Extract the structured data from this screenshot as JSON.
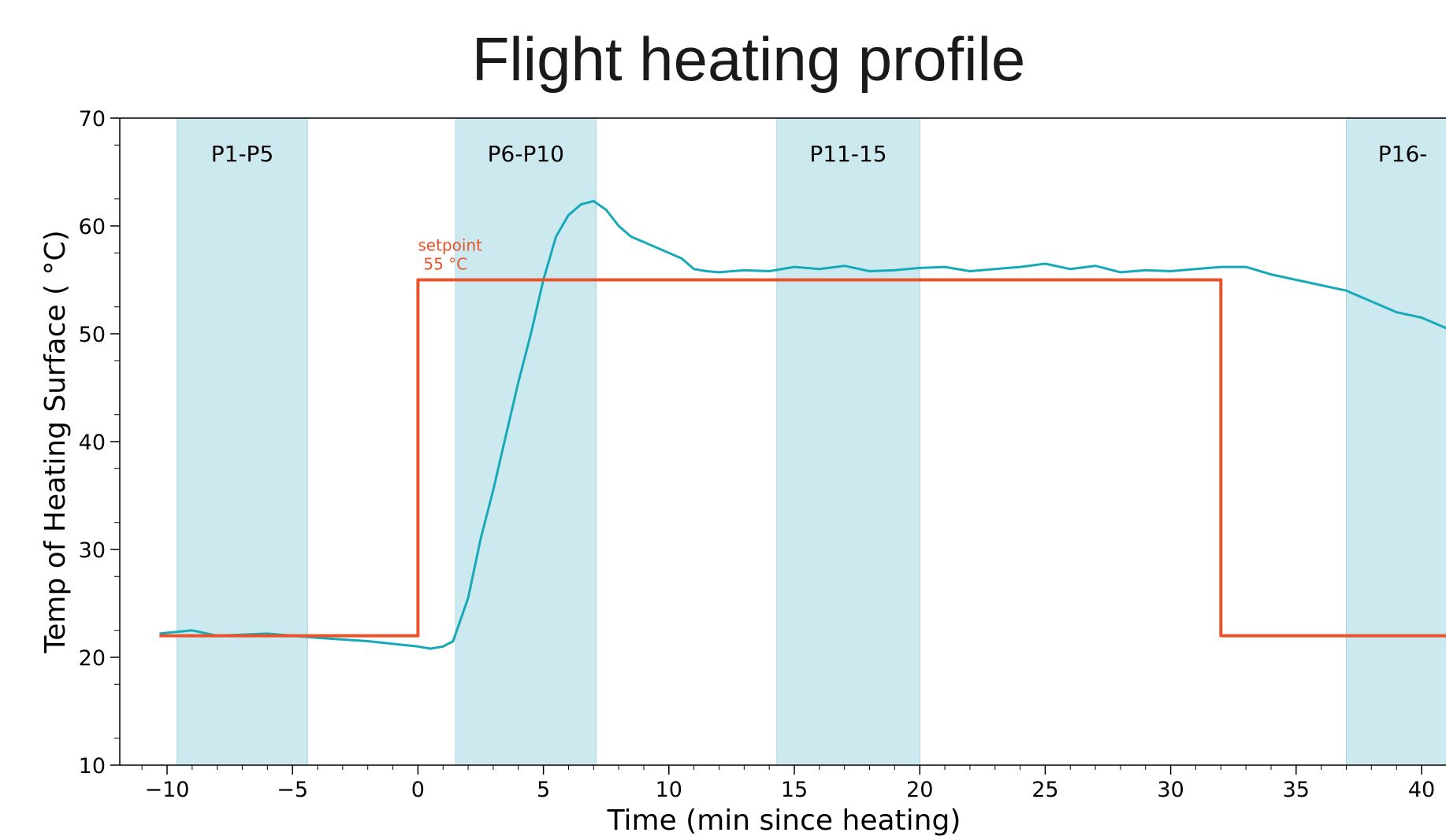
{
  "chart_data": {
    "type": "line",
    "title": "Flight heating profile",
    "xlabel": "Time (min since heating)",
    "ylabel": "Temp of Heating Surface ( °C)",
    "xlim": [
      -12,
      41
    ],
    "ylim": [
      10,
      70
    ],
    "x_ticks": [
      -10,
      -5,
      0,
      5,
      10,
      15,
      20,
      25,
      30,
      35,
      40
    ],
    "x_tick_labels": [
      "−10",
      "−5",
      "0",
      "5",
      "10",
      "15",
      "20",
      "25",
      "30",
      "35",
      "40"
    ],
    "y_ticks": [
      10,
      20,
      30,
      40,
      50,
      60,
      70
    ],
    "grid": false,
    "colors": {
      "measured": "#17a9b8",
      "setpoint": "#e8532b",
      "band": "#cce9f0"
    },
    "bands": [
      {
        "label": "P1-P5",
        "x_start": -9.6,
        "x_end": -4.4
      },
      {
        "label": "P6-P10",
        "x_start": 1.5,
        "x_end": 7.1
      },
      {
        "label": "P11-15",
        "x_start": 14.3,
        "x_end": 20.0
      },
      {
        "label": "P16-",
        "x_start": 37.0,
        "x_end": 41.5
      }
    ],
    "setpoint_annotation": {
      "line1": "setpoint",
      "line2": "55 °C",
      "x": 0,
      "y": 55
    },
    "series": [
      {
        "role": "measured",
        "x": [
          -10.3,
          -9,
          -8,
          -6,
          -4,
          -2,
          0,
          0.5,
          1,
          1.4,
          2,
          2.5,
          3,
          3.5,
          4,
          4.5,
          5,
          5.5,
          6,
          6.5,
          7,
          7.5,
          8,
          8.5,
          9,
          9.5,
          10,
          10.5,
          11,
          11.5,
          12,
          13,
          14,
          15,
          16,
          17,
          18,
          19,
          20,
          21,
          22,
          23,
          24,
          25,
          26,
          27,
          28,
          29,
          30,
          31,
          32,
          33,
          34,
          35,
          36,
          37,
          38,
          39,
          40,
          41
        ],
        "y": [
          22.2,
          22.5,
          22.0,
          22.2,
          21.8,
          21.5,
          21.0,
          20.8,
          21.0,
          21.5,
          25.5,
          31,
          35.5,
          40.5,
          45.5,
          50,
          55,
          59,
          61,
          62,
          62.3,
          61.5,
          60,
          59,
          58.5,
          58,
          57.5,
          57,
          56,
          55.8,
          55.7,
          55.9,
          55.8,
          56.2,
          56.0,
          56.3,
          55.8,
          55.9,
          56.1,
          56.2,
          55.8,
          56.0,
          56.2,
          56.5,
          56.0,
          56.3,
          55.7,
          55.9,
          55.8,
          56.0,
          56.2,
          56.2,
          55.5,
          55.0,
          54.5,
          54.0,
          53.0,
          52.0,
          51.5,
          50.5
        ]
      },
      {
        "role": "setpoint",
        "x": [
          -10.3,
          0,
          0,
          32,
          32,
          41.5
        ],
        "y": [
          22,
          22,
          55,
          55,
          22,
          22
        ]
      }
    ]
  }
}
